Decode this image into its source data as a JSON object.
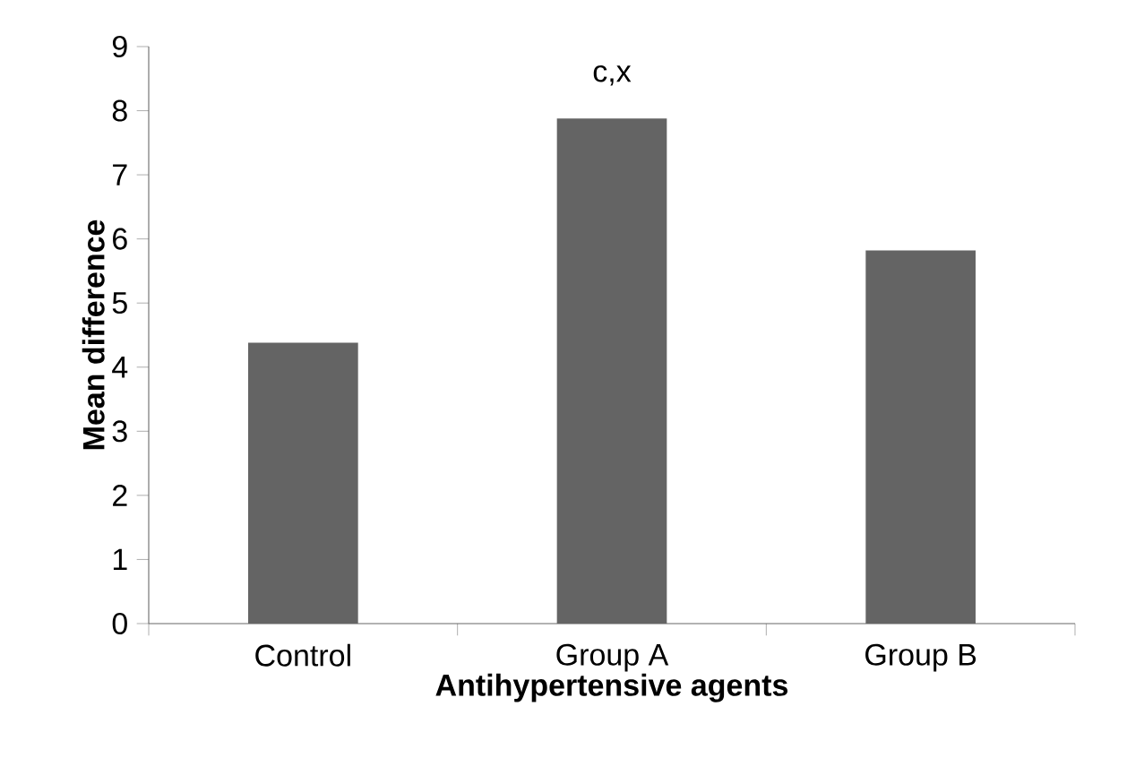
{
  "chart_data": {
    "type": "bar",
    "xlabel": "Antihypertensive  agents",
    "ylabel": "Mean difference",
    "categories": [
      "Control",
      "Group A",
      "Group B"
    ],
    "values": [
      4.38,
      7.88,
      5.82
    ],
    "color": "#646464",
    "ylim": [
      0,
      9
    ],
    "yticks": [
      0,
      1,
      2,
      3,
      4,
      5,
      6,
      7,
      8,
      9
    ],
    "grid": false,
    "annotations": [
      "c,x"
    ]
  }
}
